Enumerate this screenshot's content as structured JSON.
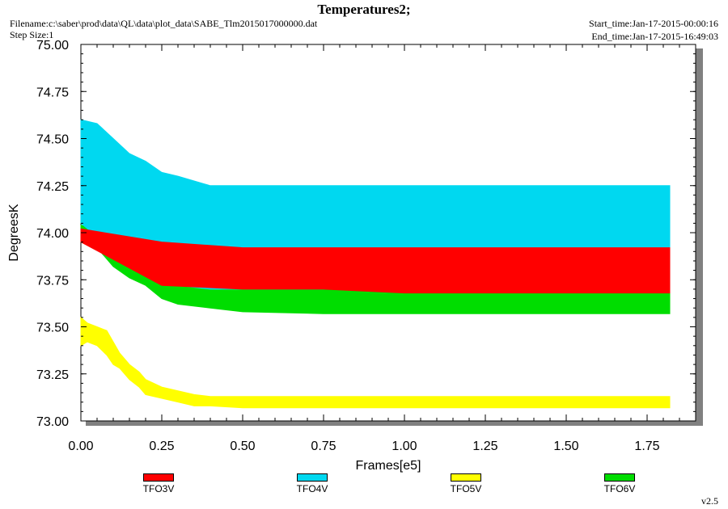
{
  "header": {
    "title": "Temperatures2;",
    "filename": "Filename:c:\\saber\\prod\\data\\QL\\data\\plot_data\\SABE_Tlm2015017000000.dat",
    "step_size": "Step Size:1",
    "start_time": "Start_time:Jan-17-2015-00:00:16",
    "end_time": "End_time:Jan-17-2015-16:49:03",
    "version": "v2.5"
  },
  "chart_data": {
    "type": "line",
    "title": "Temperatures2;",
    "xlabel": "Frames[e5]",
    "ylabel": "DegreesK",
    "xlim": [
      0.0,
      1.9
    ],
    "ylim": [
      73.0,
      75.0
    ],
    "x_ticks": [
      "0.00",
      "0.25",
      "0.50",
      "0.75",
      "1.00",
      "1.25",
      "1.50",
      "1.75"
    ],
    "y_ticks": [
      "73.00",
      "73.25",
      "73.50",
      "73.75",
      "74.00",
      "74.25",
      "74.50",
      "74.75",
      "75.00"
    ],
    "grid": false,
    "legend_position": "bottom",
    "series": [
      {
        "name": "TFO3V",
        "color": "#ff0000",
        "x": [
          0.0,
          0.25,
          0.5,
          0.75,
          1.0,
          1.25,
          1.5,
          1.82
        ],
        "low": [
          73.95,
          73.72,
          73.7,
          73.7,
          73.68,
          73.68,
          73.68,
          73.68
        ],
        "high": [
          74.02,
          73.95,
          73.92,
          73.92,
          73.92,
          73.92,
          73.92,
          73.92
        ]
      },
      {
        "name": "TFO4V",
        "color": "#00d8f0",
        "x": [
          0.0,
          0.05,
          0.1,
          0.15,
          0.2,
          0.25,
          0.3,
          0.4,
          0.5,
          0.75,
          1.0,
          1.25,
          1.5,
          1.61,
          1.75,
          1.82
        ],
        "low": [
          74.05,
          73.98,
          73.92,
          73.85,
          73.8,
          73.75,
          73.72,
          73.7,
          73.7,
          73.7,
          73.7,
          73.7,
          73.7,
          73.7,
          73.7,
          73.7
        ],
        "high": [
          74.6,
          74.58,
          74.5,
          74.42,
          74.38,
          74.32,
          74.3,
          74.25,
          74.25,
          74.25,
          74.25,
          74.25,
          74.25,
          74.25,
          74.25,
          74.25
        ]
      },
      {
        "name": "TFO5V",
        "color": "#ffff00",
        "x": [
          0.0,
          0.02,
          0.05,
          0.08,
          0.1,
          0.12,
          0.15,
          0.18,
          0.2,
          0.25,
          0.3,
          0.35,
          0.4,
          0.5,
          0.75,
          1.0,
          1.25,
          1.5,
          1.82
        ],
        "low": [
          73.4,
          73.42,
          73.4,
          73.35,
          73.3,
          73.28,
          73.22,
          73.18,
          73.14,
          73.12,
          73.1,
          73.08,
          73.08,
          73.07,
          73.07,
          73.07,
          73.07,
          73.07,
          73.07
        ],
        "high": [
          73.55,
          73.52,
          73.5,
          73.48,
          73.42,
          73.36,
          73.3,
          73.26,
          73.22,
          73.18,
          73.16,
          73.14,
          73.13,
          73.13,
          73.13,
          73.13,
          73.13,
          73.13,
          73.13
        ]
      },
      {
        "name": "TFO6V",
        "color": "#00dd00",
        "x": [
          0.0,
          0.05,
          0.1,
          0.15,
          0.2,
          0.25,
          0.3,
          0.4,
          0.5,
          0.75,
          1.0,
          1.25,
          1.5,
          1.82
        ],
        "low": [
          73.95,
          73.92,
          73.82,
          73.76,
          73.72,
          73.65,
          73.62,
          73.6,
          73.58,
          73.57,
          73.57,
          73.57,
          73.57,
          73.57
        ],
        "high": [
          74.04,
          74.02,
          73.92,
          73.85,
          73.8,
          73.75,
          73.72,
          73.7,
          73.7,
          73.7,
          73.68,
          73.68,
          73.68,
          73.68
        ]
      }
    ]
  }
}
